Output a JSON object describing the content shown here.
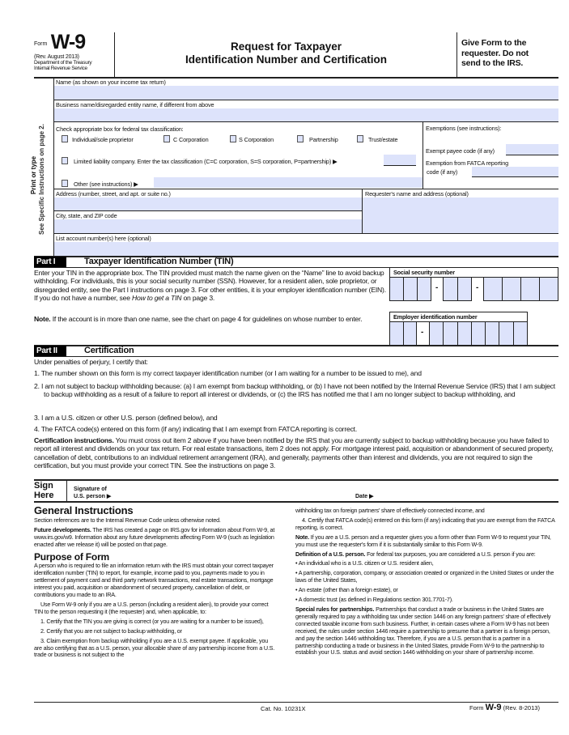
{
  "header": {
    "form_word": "Form",
    "form_number": "W-9",
    "revision": "(Rev. August 2013)",
    "department": "Department of the Treasury",
    "agency": "Internal Revenue Service",
    "title_line1": "Request for Taxpayer",
    "title_line2": "Identification Number and Certification",
    "give_form": [
      "Give Form to the",
      "requester. Do not",
      "send to the IRS."
    ]
  },
  "side": {
    "line1": "Print or type",
    "line2": "See Specific Instructions on page 2."
  },
  "fields": {
    "name": "Name (as shown on your income tax return)",
    "business": "Business name/disregarded entity name, if different from above",
    "classification": "Check appropriate box for federal tax classification:",
    "checkboxes": [
      "Individual/sole proprietor",
      "C Corporation",
      "S Corporation",
      "Partnership",
      "Trust/estate"
    ],
    "llc": "Limited liability company. Enter the tax classification (C=C corporation, S=S corporation, P=partnership) ▶",
    "other": "Other (see instructions) ▶",
    "exemptions": "Exemptions (see instructions):",
    "exempt_payee": "Exempt payee code (if any)",
    "fatca_1": "Exemption from FATCA reporting",
    "fatca_2": "code (if any)",
    "address": "Address (number, street, and apt. or suite no.)",
    "requester": "Requester's name and address (optional)",
    "city": "City, state, and ZIP code",
    "account": "List account number(s) here (optional)"
  },
  "part1": {
    "badge": "Part I",
    "title": "Taxpayer Identification Number (TIN)",
    "text": "Enter your TIN in the appropriate box. The TIN provided must match the name given on the “Name” line to avoid backup withholding. For individuals, this is your social security number (SSN). However, for a resident alien, sole proprietor, or disregarded entity, see the Part I instructions on page 3. For other entities, it is your employer identification number (EIN). If you do not have a number, see",
    "text_italic": "How to get a TIN",
    "text_end": "on page 3.",
    "note_bold": "Note.",
    "note": "If the account is in more than one name, see the chart on page 4 for guidelines on whose number to enter.",
    "ssn_label": "Social security number",
    "ein_label": "Employer identification number",
    "dash": "-"
  },
  "part2": {
    "badge": "Part II",
    "title": "Certification",
    "intro": "Under penalties of perjury, I certify that:",
    "items": [
      "1.  The number shown on this form is my correct taxpayer identification number (or I am waiting for a number to be issued to me), and",
      "2.  I am not subject to backup withholding because: (a) I am exempt from backup withholding, or (b) I have not been notified by the Internal Revenue Service (IRS) that I am subject to backup withholding as a result of a failure to report all interest or dividends, or (c) the IRS has notified me that I am no longer subject to backup withholding, and",
      "3.  I am a U.S. citizen or other U.S. person (defined below), and",
      "4. The FATCA code(s) entered on this form (if any) indicating that I am exempt from FATCA reporting is correct."
    ],
    "cert_bold": "Certification instructions.",
    "cert": "You must cross out item 2 above if you have been notified by the IRS that you are currently subject to backup withholding because you have failed to report all interest and dividends on your tax return. For real estate transactions, item 2 does not apply. For mortgage interest paid, acquisition or abandonment of secured property, cancellation of debt, contributions to an individual retirement arrangement (IRA), and generally, payments other than interest and dividends, you are not required to sign the certification, but you must provide your correct TIN. See the instructions on page 3."
  },
  "sign": {
    "sign": "Sign",
    "here": "Here",
    "sig1": "Signature of",
    "sig2": "U.S. person ▶",
    "date": "Date ▶"
  },
  "instructions": {
    "general": "General Instructions",
    "section": "Section references are to the Internal Revenue Code unless otherwise noted.",
    "future_bold": "Future developments.",
    "future": "The IRS has created a page on IRS.gov for information about Form W-9, at www.irs.gov/w9. Information about any future developments affecting Form W-9 (such as legislation enacted after we release it) will be posted on that page.",
    "purpose": "Purpose of Form",
    "purpose_p1": "A person who is required to file an information return with the IRS must obtain your correct taxpayer identification number (TIN) to report, for example, income paid to you, payments made to you in settlement of payment card and third party network transactions, real estate transactions, mortgage interest you paid, acquisition or abandonment of secured property, cancellation of debt, or contributions you made to an IRA.",
    "purpose_p2": "Use Form W-9 only if you are a U.S. person (including a resident alien), to provide your correct TIN to the person requesting it (the requester) and, when applicable, to:",
    "purpose_1": "1. Certify that the TIN you are giving is correct (or you are waiting for a number to be issued),",
    "purpose_2": "2. Certify that you are not subject to backup withholding, or",
    "purpose_3": "3. Claim exemption from backup withholding if you are a U.S. exempt payee. If applicable, you are also certifying that as a U.S. person, your allocable share of any partnership income from a U.S. trade or business is not subject to the",
    "right_p0": "withholding tax on foreign partners' share of effectively connected income, and",
    "right_4": "4. Certify that FATCA code(s) entered on this form (if any) indicating that you are exempt from the FATCA reporting, is correct.",
    "note_bold": "Note.",
    "note": "If you are a U.S. person and a requester gives you a form other than Form W-9 to request your TIN, you must use the requester's form if it is substantially similar to this Form W-9.",
    "def_bold": "Definition of a U.S. person.",
    "def": "For federal tax purposes, you are considered a U.S. person if you are:",
    "bullets": [
      "• An individual who is a U.S. citizen or U.S. resident alien,",
      "• A partnership, corporation, company, or association created or organized in the United States or under the laws of the United States,",
      "• An estate (other than a foreign estate), or",
      "• A domestic trust (as defined in Regulations section 301.7701-7)."
    ],
    "special_bold": "Special rules for partnerships.",
    "special": "Partnerships that conduct a trade or business in the United States are generally required to pay a withholding tax under section 1446 on any foreign partners' share of effectively connected taxable income from such business. Further, in certain cases where a Form W-9 has not been received, the rules under section 1446 require a partnership to presume that a partner is a foreign person, and pay the section 1446 withholding tax. Therefore, if you are a U.S. person that is a partner in a partnership conducting a trade or business in the United States, provide Form W-9 to the partnership to establish your U.S. status and avoid section 1446 withholding on your share of partnership income."
  },
  "footer": {
    "cat": "Cat. No. 10231X",
    "form": "Form",
    "form_number": "W-9",
    "rev": "(Rev. 8-2013)"
  },
  "colors": {
    "field": "#dde3fb"
  }
}
